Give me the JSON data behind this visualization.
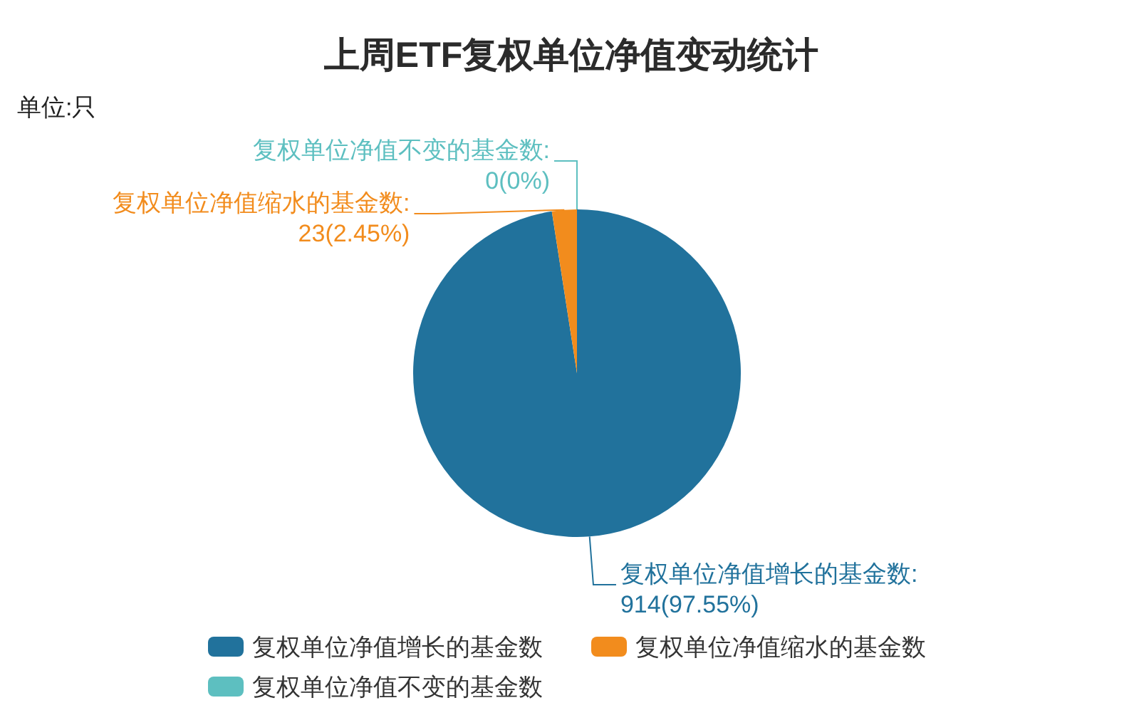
{
  "chart_data": {
    "type": "pie",
    "title": "上周ETF复权单位净值变动统计",
    "subtitle": "单位:只",
    "categories": [
      "复权单位净值增长的基金数",
      "复权单位净值缩水的基金数",
      "复权单位净值不变的基金数"
    ],
    "values": [
      914,
      23,
      0
    ],
    "colors": [
      "#21729c",
      "#f28c1d",
      "#5dbfc0"
    ],
    "value_labels": [
      "复权单位净值增长的基金数:\n914(97.55%)",
      "复权单位净值缩水的基金数:\n23(2.45%)",
      "复权单位净值不变的基金数:\n0(0%)"
    ],
    "legend": "bottom"
  }
}
